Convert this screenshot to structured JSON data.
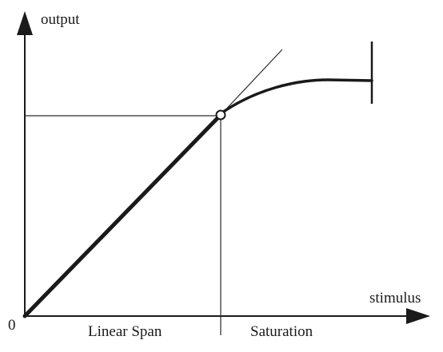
{
  "labels": {
    "y_axis": "output",
    "x_axis": "stimulus",
    "origin": "0",
    "linear_region": "Linear Span",
    "saturation_region": "Saturation"
  },
  "colors": {
    "line": "#1a1a1a",
    "background": "#ffffff"
  }
}
